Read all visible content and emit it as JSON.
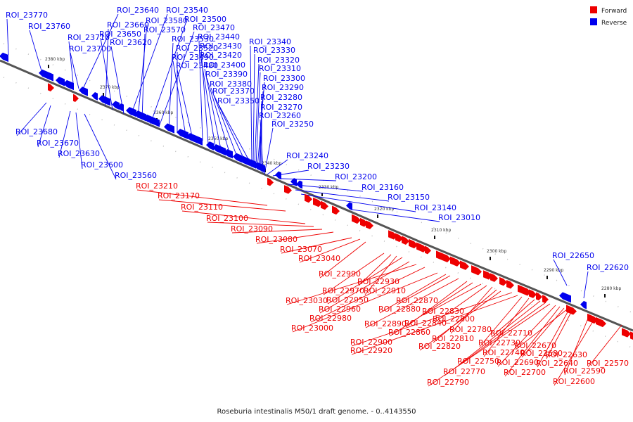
{
  "caption": "Roseburia intestinalis M50/1 draft genome. - 0..4143550",
  "legend": [
    {
      "label": "Forward",
      "color": "#ee0000"
    },
    {
      "label": "Reverse",
      "color": "#0000ee"
    }
  ],
  "colors": {
    "forward": "#ee0000",
    "reverse": "#0000ee",
    "backbone": "#555555"
  },
  "scale_ticks": [
    "2380 kbp",
    "2370 kbp",
    "2360 kbp",
    "2350 kbp",
    "2340 kbp",
    "2330 kbp",
    "2320 kbp",
    "2310 kbp",
    "2300 kbp",
    "2290 kbp",
    "2280 kbp"
  ],
  "reverse_labels": [
    "ROI_23770",
    "ROI_23760",
    "ROI_23710",
    "ROI_23700",
    "ROI_23640",
    "ROI_23660",
    "ROI_23650",
    "ROI_23620",
    "ROI_23540",
    "ROI_23580",
    "ROI_23570",
    "ROI_23500",
    "ROI_23470",
    "ROI_23530",
    "ROI_23520",
    "ROI_23490",
    "ROI_23480",
    "ROI_23440",
    "ROI_23430",
    "ROI_23420",
    "ROI_23400",
    "ROI_23390",
    "ROI_23380",
    "ROI_23370",
    "ROI_23350",
    "ROI_23340",
    "ROI_23330",
    "ROI_23320",
    "ROI_23310",
    "ROI_23300",
    "ROI_23290",
    "ROI_23280",
    "ROI_23270",
    "ROI_23260",
    "ROI_23250",
    "ROI_23240",
    "ROI_23230",
    "ROI_23200",
    "ROI_23160",
    "ROI_23150",
    "ROI_23140",
    "ROI_23010",
    "ROI_23680",
    "ROI_23670",
    "ROI_23630",
    "ROI_23600",
    "ROI_23560",
    "ROI_22650",
    "ROI_22620"
  ],
  "forward_labels": [
    "ROI_23210",
    "ROI_23170",
    "ROI_23110",
    "ROI_23100",
    "ROI_23090",
    "ROI_23080",
    "ROI_23070",
    "ROI_23040",
    "ROI_22990",
    "ROI_22970",
    "ROI_22930",
    "ROI_22910",
    "ROI_22950",
    "ROI_22960",
    "ROI_23030",
    "ROI_22980",
    "ROI_23000",
    "ROI_22880",
    "ROI_22870",
    "ROI_22890",
    "ROI_22840",
    "ROI_22860",
    "ROI_22830",
    "ROI_22800",
    "ROI_22780",
    "ROI_22810",
    "ROI_22820",
    "ROI_22900",
    "ROI_22920",
    "ROI_22730",
    "ROI_22740",
    "ROI_22710",
    "ROI_22750",
    "ROI_22770",
    "ROI_22790",
    "ROI_22690",
    "ROI_22700",
    "ROI_22680",
    "ROI_22670",
    "ROI_22640",
    "ROI_22630",
    "ROI_22590",
    "ROI_22600",
    "ROI_22570"
  ]
}
